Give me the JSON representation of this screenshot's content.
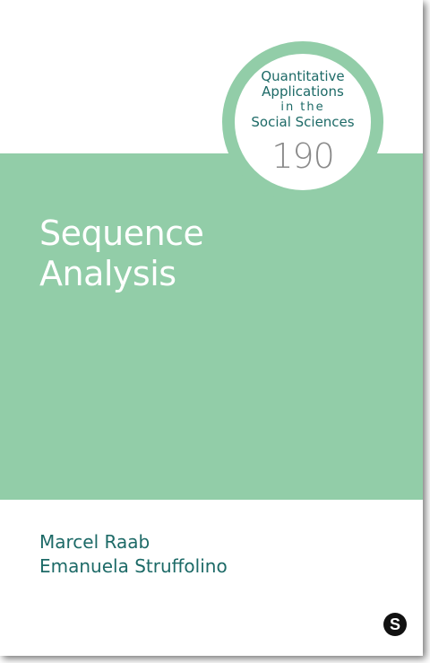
{
  "series": {
    "lines": [
      "Quantitative",
      "Applications",
      "in the",
      "Social Sciences"
    ],
    "number": "190"
  },
  "book": {
    "title_lines": [
      "Sequence",
      "Analysis"
    ],
    "authors": [
      "Marcel Raab",
      "Emanuela Struffolino"
    ]
  },
  "publisher": {
    "logo_letter": "S",
    "logo_icon": "sage-publisher-logo-icon"
  },
  "colors": {
    "band": "#92cda8",
    "badge_ring": "#92cda8",
    "series_text": "#1d6a67",
    "author_text": "#1d6a67",
    "title_text": "#ffffff"
  }
}
